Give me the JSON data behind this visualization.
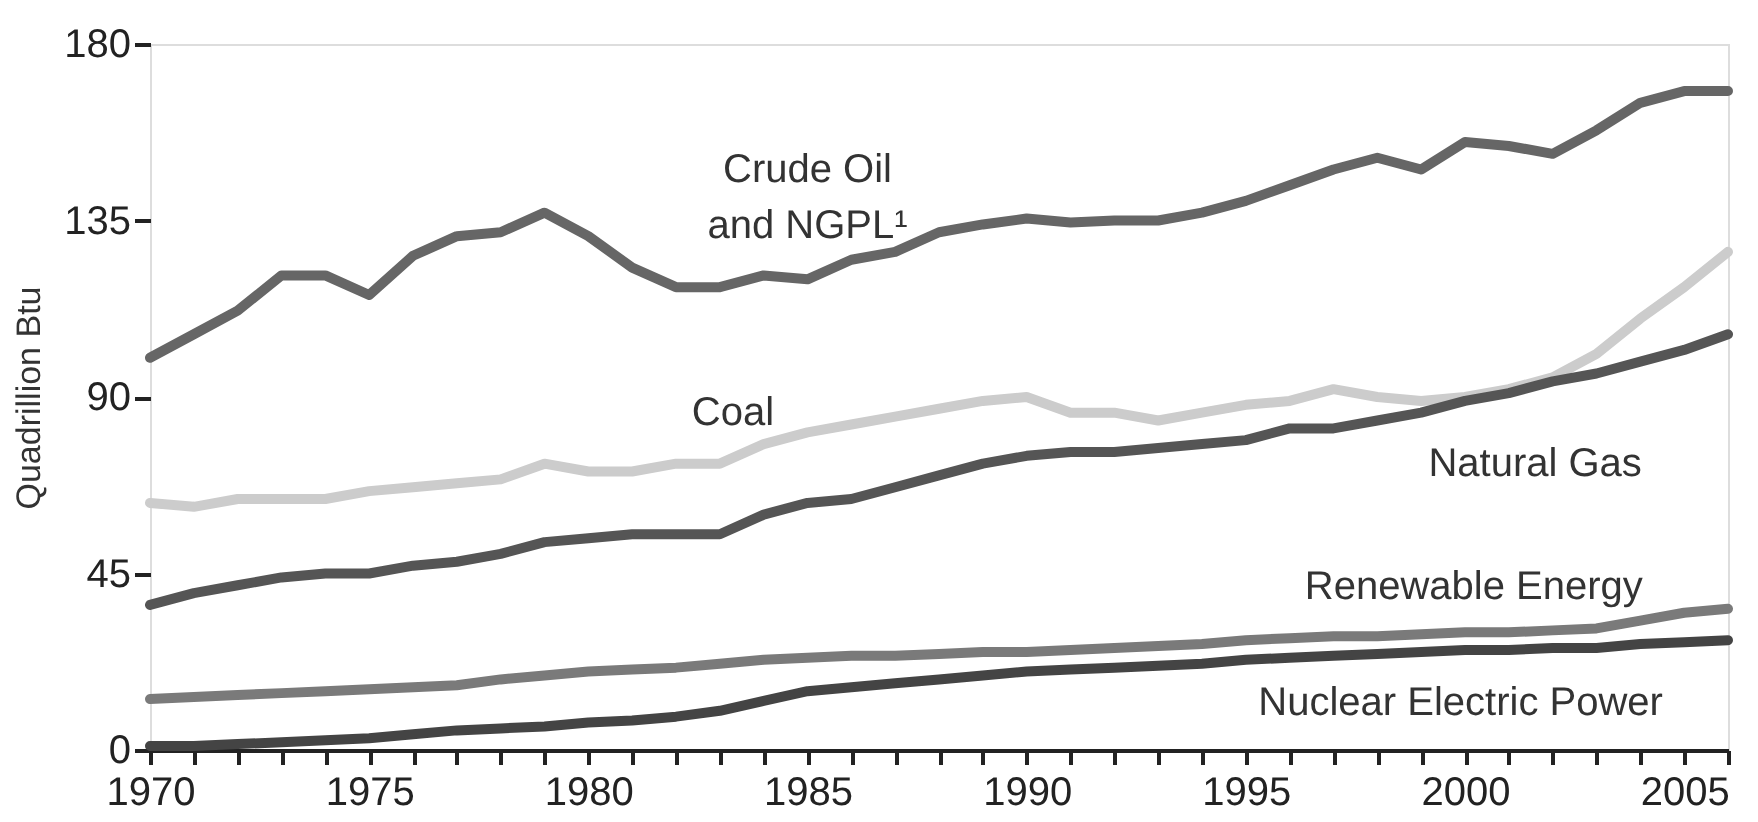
{
  "chart_data": {
    "type": "line",
    "ylabel": "Quadrillion Btu",
    "x": [
      1970,
      1971,
      1972,
      1973,
      1974,
      1975,
      1976,
      1977,
      1978,
      1979,
      1980,
      1981,
      1982,
      1983,
      1984,
      1985,
      1986,
      1987,
      1988,
      1989,
      1990,
      1991,
      1992,
      1993,
      1994,
      1995,
      1996,
      1997,
      1998,
      1999,
      2000,
      2001,
      2002,
      2003,
      2004,
      2005,
      2006
    ],
    "series": [
      {
        "name": "Crude Oil\nand NGPL¹",
        "color": "#666666",
        "values": [
          100,
          106,
          112,
          121,
          121,
          116,
          126,
          131,
          132,
          137,
          131,
          123,
          118,
          118,
          121,
          120,
          125,
          127,
          132,
          134,
          135.5,
          134.5,
          135,
          135,
          137,
          140,
          144,
          148,
          151,
          148,
          155,
          154,
          152,
          158,
          165,
          168,
          168
        ]
      },
      {
        "name": "Coal",
        "color": "#cccccc",
        "values": [
          63,
          62,
          64,
          64,
          64,
          66,
          67,
          68,
          69,
          73,
          71,
          71,
          73,
          73,
          78,
          81,
          83,
          85,
          87,
          89,
          90,
          86,
          86,
          84,
          86,
          88,
          89,
          92,
          90,
          89,
          90,
          92,
          95,
          101,
          110,
          118,
          127
        ]
      },
      {
        "name": "Natural Gas",
        "color": "#555555",
        "values": [
          37,
          40,
          42,
          44,
          45,
          45,
          47,
          48,
          50,
          53,
          54,
          55,
          55,
          55,
          60,
          63,
          64,
          67,
          70,
          73,
          75,
          76,
          76,
          77,
          78,
          79,
          82,
          82,
          84,
          86,
          89,
          91,
          94,
          96,
          99,
          102,
          106
        ]
      },
      {
        "name": "Renewable Energy",
        "color": "#7a7a7a",
        "values": [
          13,
          13.5,
          14,
          14.5,
          15,
          15.5,
          16,
          16.5,
          18,
          19,
          20,
          20.5,
          21,
          22,
          23,
          23.5,
          24,
          24,
          24.5,
          25,
          25,
          25.5,
          26,
          26.5,
          27,
          28,
          28.5,
          29,
          29,
          29.5,
          30,
          30,
          30.5,
          31,
          33,
          35,
          36
        ]
      },
      {
        "name": "Nuclear Electric Power",
        "color": "#444444",
        "values": [
          1,
          1,
          1.5,
          2,
          2.5,
          3,
          4,
          5,
          5.5,
          6,
          7,
          7.5,
          8.5,
          10,
          12.5,
          15,
          16,
          17,
          18,
          19,
          20,
          20.5,
          21,
          21.5,
          22,
          23,
          23.5,
          24,
          24.5,
          25,
          25.5,
          25.5,
          26,
          26,
          27,
          27.5,
          28
        ]
      }
    ],
    "xlim": [
      1970,
      2006
    ],
    "xticks": [
      1970,
      {
        "value": 1971,
        "label": null
      },
      {
        "value": 1972,
        "label": null
      },
      {
        "value": 1973,
        "label": null
      },
      {
        "value": 1974,
        "label": null
      },
      1975,
      {
        "value": 1976,
        "label": null
      },
      {
        "value": 1977,
        "label": null
      },
      {
        "value": 1978,
        "label": null
      },
      {
        "value": 1979,
        "label": null
      },
      1980,
      {
        "value": 1981,
        "label": null
      },
      {
        "value": 1982,
        "label": null
      },
      {
        "value": 1983,
        "label": null
      },
      {
        "value": 1984,
        "label": null
      },
      1985,
      {
        "value": 1986,
        "label": null
      },
      {
        "value": 1987,
        "label": null
      },
      {
        "value": 1988,
        "label": null
      },
      {
        "value": 1989,
        "label": null
      },
      1990,
      {
        "value": 1991,
        "label": null
      },
      {
        "value": 1992,
        "label": null
      },
      {
        "value": 1993,
        "label": null
      },
      {
        "value": 1994,
        "label": null
      },
      1995,
      {
        "value": 1996,
        "label": null
      },
      {
        "value": 1997,
        "label": null
      },
      {
        "value": 1998,
        "label": null
      },
      {
        "value": 1999,
        "label": null
      },
      2000,
      {
        "value": 2001,
        "label": null
      },
      {
        "value": 2002,
        "label": null
      },
      {
        "value": 2003,
        "label": null
      },
      {
        "value": 2004,
        "label": null
      },
      2005,
      {
        "value": 2006,
        "label": null
      }
    ],
    "ylim": [
      0,
      180
    ],
    "yticks": [
      0,
      45,
      90,
      135,
      180
    ],
    "grid": false,
    "legend": false,
    "marker": "none",
    "line_style": "solid"
  }
}
